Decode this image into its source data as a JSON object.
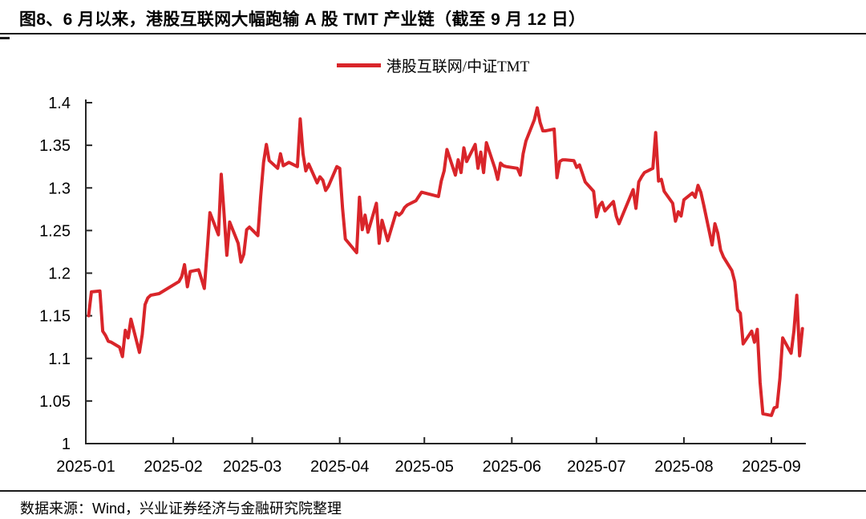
{
  "header": {
    "title": "图8、6 月以来，港股互联网大幅跑输 A 股 TMT 产业链（截至 9 月 12 日）"
  },
  "legend": {
    "label": "港股互联网/中证TMT"
  },
  "footer": {
    "source": "数据来源：Wind，兴业证券经济与金融研究院整理"
  },
  "colors": {
    "line": "#d9252a",
    "axis": "#262626",
    "text": "#000000",
    "background": "#ffffff"
  },
  "chart_data": {
    "type": "line",
    "title": "图8、6 月以来，港股互联网大幅跑输 A 股 TMT 产业链（截至 9 月 12 日）",
    "xlabel": "",
    "ylabel": "",
    "ylim": [
      1.0,
      1.4
    ],
    "grid": false,
    "legend_position": "top-center",
    "y_tick_labels": [
      "1",
      "1.05",
      "1.1",
      "1.15",
      "1.2",
      "1.25",
      "1.3",
      "1.35",
      "1.4"
    ],
    "x_tick_labels": [
      "2025-01",
      "2025-02",
      "2025-03",
      "2025-04",
      "2025-05",
      "2025-06",
      "2025-07",
      "2025-08",
      "2025-09"
    ],
    "series": [
      {
        "name": "港股互联网/中证TMT",
        "color": "#d9252a",
        "points": [
          [
            "2025-01-02",
            1.15
          ],
          [
            "2025-01-03",
            1.178
          ],
          [
            "2025-01-06",
            1.179
          ],
          [
            "2025-01-07",
            1.132
          ],
          [
            "2025-01-08",
            1.127
          ],
          [
            "2025-01-09",
            1.12
          ],
          [
            "2025-01-10",
            1.119
          ],
          [
            "2025-01-13",
            1.113
          ],
          [
            "2025-01-14",
            1.102
          ],
          [
            "2025-01-15",
            1.133
          ],
          [
            "2025-01-16",
            1.124
          ],
          [
            "2025-01-17",
            1.146
          ],
          [
            "2025-01-20",
            1.107
          ],
          [
            "2025-01-21",
            1.128
          ],
          [
            "2025-01-22",
            1.163
          ],
          [
            "2025-01-23",
            1.171
          ],
          [
            "2025-01-24",
            1.174
          ],
          [
            "2025-01-27",
            1.176
          ],
          [
            "2025-02-03",
            1.19
          ],
          [
            "2025-02-04",
            1.196
          ],
          [
            "2025-02-05",
            1.21
          ],
          [
            "2025-02-06",
            1.184
          ],
          [
            "2025-02-07",
            1.202
          ],
          [
            "2025-02-10",
            1.204
          ],
          [
            "2025-02-11",
            1.193
          ],
          [
            "2025-02-12",
            1.182
          ],
          [
            "2025-02-13",
            1.225
          ],
          [
            "2025-02-14",
            1.271
          ],
          [
            "2025-02-17",
            1.245
          ],
          [
            "2025-02-18",
            1.316
          ],
          [
            "2025-02-19",
            1.27
          ],
          [
            "2025-02-20",
            1.221
          ],
          [
            "2025-02-21",
            1.26
          ],
          [
            "2025-02-24",
            1.235
          ],
          [
            "2025-02-25",
            1.213
          ],
          [
            "2025-02-26",
            1.222
          ],
          [
            "2025-02-27",
            1.251
          ],
          [
            "2025-02-28",
            1.254
          ],
          [
            "2025-03-03",
            1.244
          ],
          [
            "2025-03-04",
            1.29
          ],
          [
            "2025-03-05",
            1.33
          ],
          [
            "2025-03-06",
            1.351
          ],
          [
            "2025-03-07",
            1.332
          ],
          [
            "2025-03-10",
            1.323
          ],
          [
            "2025-03-11",
            1.34
          ],
          [
            "2025-03-12",
            1.326
          ],
          [
            "2025-03-13",
            1.328
          ],
          [
            "2025-03-14",
            1.33
          ],
          [
            "2025-03-17",
            1.325
          ],
          [
            "2025-03-18",
            1.381
          ],
          [
            "2025-03-19",
            1.34
          ],
          [
            "2025-03-20",
            1.32
          ],
          [
            "2025-03-21",
            1.328
          ],
          [
            "2025-03-24",
            1.306
          ],
          [
            "2025-03-25",
            1.313
          ],
          [
            "2025-03-26",
            1.309
          ],
          [
            "2025-03-27",
            1.297
          ],
          [
            "2025-03-28",
            1.302
          ],
          [
            "2025-03-31",
            1.325
          ],
          [
            "2025-04-01",
            1.323
          ],
          [
            "2025-04-02",
            1.276
          ],
          [
            "2025-04-03",
            1.24
          ],
          [
            "2025-04-07",
            1.224
          ],
          [
            "2025-04-08",
            1.289
          ],
          [
            "2025-04-09",
            1.251
          ],
          [
            "2025-04-10",
            1.268
          ],
          [
            "2025-04-11",
            1.248
          ],
          [
            "2025-04-14",
            1.282
          ],
          [
            "2025-04-15",
            1.235
          ],
          [
            "2025-04-16",
            1.262
          ],
          [
            "2025-04-17",
            1.25
          ],
          [
            "2025-04-18",
            1.238
          ],
          [
            "2025-04-21",
            1.271
          ],
          [
            "2025-04-22",
            1.268
          ],
          [
            "2025-04-23",
            1.271
          ],
          [
            "2025-04-24",
            1.277
          ],
          [
            "2025-04-25",
            1.28
          ],
          [
            "2025-04-28",
            1.285
          ],
          [
            "2025-04-29",
            1.29
          ],
          [
            "2025-04-30",
            1.295
          ],
          [
            "2025-05-06",
            1.29
          ],
          [
            "2025-05-07",
            1.308
          ],
          [
            "2025-05-08",
            1.32
          ],
          [
            "2025-05-09",
            1.345
          ],
          [
            "2025-05-12",
            1.315
          ],
          [
            "2025-05-13",
            1.333
          ],
          [
            "2025-05-14",
            1.318
          ],
          [
            "2025-05-15",
            1.347
          ],
          [
            "2025-05-16",
            1.331
          ],
          [
            "2025-05-19",
            1.351
          ],
          [
            "2025-05-20",
            1.323
          ],
          [
            "2025-05-21",
            1.342
          ],
          [
            "2025-05-22",
            1.318
          ],
          [
            "2025-05-23",
            1.353
          ],
          [
            "2025-05-26",
            1.323
          ],
          [
            "2025-05-27",
            1.31
          ],
          [
            "2025-05-28",
            1.329
          ],
          [
            "2025-05-29",
            1.326
          ],
          [
            "2025-05-30",
            1.325
          ],
          [
            "2025-06-03",
            1.323
          ],
          [
            "2025-06-04",
            1.315
          ],
          [
            "2025-06-05",
            1.34
          ],
          [
            "2025-06-06",
            1.355
          ],
          [
            "2025-06-09",
            1.38
          ],
          [
            "2025-06-10",
            1.394
          ],
          [
            "2025-06-11",
            1.377
          ],
          [
            "2025-06-12",
            1.367
          ],
          [
            "2025-06-13",
            1.367
          ],
          [
            "2025-06-16",
            1.369
          ],
          [
            "2025-06-17",
            1.312
          ],
          [
            "2025-06-18",
            1.331
          ],
          [
            "2025-06-19",
            1.333
          ],
          [
            "2025-06-20",
            1.333
          ],
          [
            "2025-06-23",
            1.332
          ],
          [
            "2025-06-24",
            1.324
          ],
          [
            "2025-06-25",
            1.327
          ],
          [
            "2025-06-26",
            1.317
          ],
          [
            "2025-06-27",
            1.307
          ],
          [
            "2025-06-30",
            1.296
          ],
          [
            "2025-07-01",
            1.266
          ],
          [
            "2025-07-02",
            1.279
          ],
          [
            "2025-07-03",
            1.283
          ],
          [
            "2025-07-04",
            1.273
          ],
          [
            "2025-07-07",
            1.284
          ],
          [
            "2025-07-08",
            1.267
          ],
          [
            "2025-07-09",
            1.258
          ],
          [
            "2025-07-10",
            1.266
          ],
          [
            "2025-07-11",
            1.274
          ],
          [
            "2025-07-14",
            1.298
          ],
          [
            "2025-07-15",
            1.276
          ],
          [
            "2025-07-16",
            1.307
          ],
          [
            "2025-07-17",
            1.313
          ],
          [
            "2025-07-18",
            1.318
          ],
          [
            "2025-07-21",
            1.323
          ],
          [
            "2025-07-22",
            1.365
          ],
          [
            "2025-07-23",
            1.308
          ],
          [
            "2025-07-24",
            1.31
          ],
          [
            "2025-07-25",
            1.296
          ],
          [
            "2025-07-28",
            1.282
          ],
          [
            "2025-07-29",
            1.261
          ],
          [
            "2025-07-30",
            1.272
          ],
          [
            "2025-07-31",
            1.267
          ],
          [
            "2025-08-01",
            1.286
          ],
          [
            "2025-08-04",
            1.294
          ],
          [
            "2025-08-05",
            1.289
          ],
          [
            "2025-08-06",
            1.303
          ],
          [
            "2025-08-07",
            1.295
          ],
          [
            "2025-08-08",
            1.28
          ],
          [
            "2025-08-11",
            1.233
          ],
          [
            "2025-08-12",
            1.258
          ],
          [
            "2025-08-13",
            1.247
          ],
          [
            "2025-08-14",
            1.227
          ],
          [
            "2025-08-15",
            1.219
          ],
          [
            "2025-08-18",
            1.203
          ],
          [
            "2025-08-19",
            1.19
          ],
          [
            "2025-08-20",
            1.157
          ],
          [
            "2025-08-21",
            1.153
          ],
          [
            "2025-08-22",
            1.117
          ],
          [
            "2025-08-25",
            1.132
          ],
          [
            "2025-08-26",
            1.119
          ],
          [
            "2025-08-27",
            1.134
          ],
          [
            "2025-08-28",
            1.072
          ],
          [
            "2025-08-29",
            1.035
          ],
          [
            "2025-09-01",
            1.033
          ],
          [
            "2025-09-02",
            1.042
          ],
          [
            "2025-09-03",
            1.043
          ],
          [
            "2025-09-04",
            1.076
          ],
          [
            "2025-09-05",
            1.124
          ],
          [
            "2025-09-08",
            1.106
          ],
          [
            "2025-09-09",
            1.132
          ],
          [
            "2025-09-10",
            1.174
          ],
          [
            "2025-09-11",
            1.103
          ],
          [
            "2025-09-12",
            1.135
          ]
        ]
      }
    ]
  }
}
